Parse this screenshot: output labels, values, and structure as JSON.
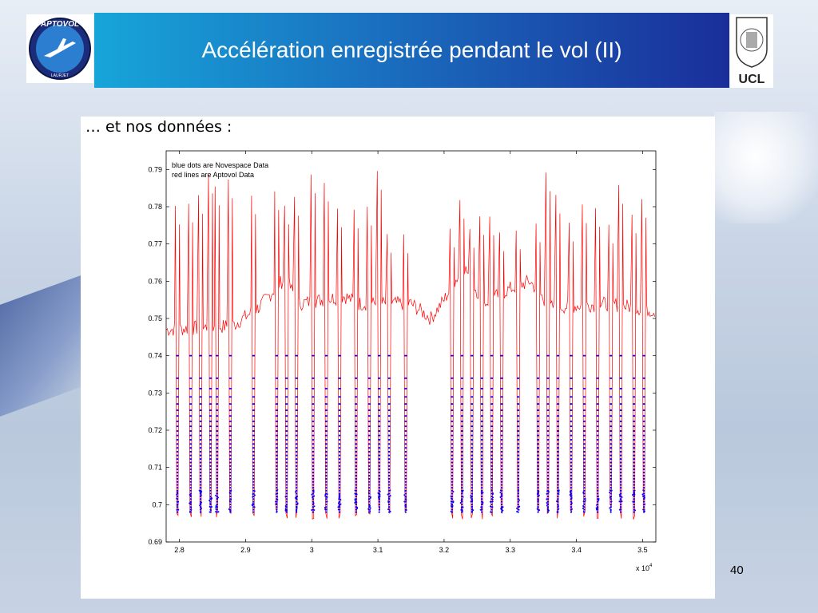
{
  "slide": {
    "title": "Accélération enregistrée pendant le vol (II)",
    "subtitle": "… et nos données :",
    "page_number": "40"
  },
  "logos": {
    "left_text": "APTOVOL",
    "left_subtext": "LAURJET",
    "right_text": "UCL"
  },
  "colors": {
    "header_start": "#17a5d9",
    "header_end": "#1a2e9a",
    "novespace": "#0000ff",
    "aptovol": "#ff0000"
  },
  "chart_data": {
    "type": "line",
    "legend": [
      "blue dots are Novespace Data",
      "red lines are Aptovol Data"
    ],
    "legend_position": "top-left",
    "x_multiplier_label": "x 10",
    "x_multiplier_exp": "4",
    "xlim": [
      2.78,
      3.52
    ],
    "ylim": [
      0.69,
      0.795
    ],
    "xticks": [
      "2.8",
      "2.9",
      "3",
      "3.1",
      "3.2",
      "3.3",
      "3.4",
      "3.5"
    ],
    "yticks": [
      "0.69",
      "0.7",
      "0.71",
      "0.72",
      "0.73",
      "0.74",
      "0.75",
      "0.76",
      "0.77",
      "0.78",
      "0.79"
    ],
    "grid": false,
    "parabolas_x": [
      2.797,
      2.817,
      2.832,
      2.847,
      2.857,
      2.877,
      2.912,
      2.947,
      2.962,
      2.977,
      3.002,
      3.022,
      3.042,
      3.067,
      3.087,
      3.102,
      3.117,
      3.142,
      3.212,
      3.227,
      3.242,
      3.257,
      3.272,
      3.287,
      3.312,
      3.342,
      3.357,
      3.372,
      3.392,
      3.412,
      3.432,
      3.452,
      3.467,
      3.487,
      3.502
    ],
    "series": [
      {
        "name": "Novespace Data",
        "style": "dots",
        "color": "#0000ff",
        "parabola_min": 0.698,
        "parabola_max": 0.74
      },
      {
        "name": "Aptovol Data",
        "style": "line",
        "color": "#ff0000",
        "baseline": [
          [
            2.78,
            0.747
          ],
          [
            2.88,
            0.748
          ],
          [
            2.92,
            0.753
          ],
          [
            2.96,
            0.761
          ],
          [
            2.98,
            0.754
          ],
          [
            3.05,
            0.756
          ],
          [
            3.07,
            0.754
          ],
          [
            3.15,
            0.754
          ],
          [
            3.18,
            0.75
          ],
          [
            3.2,
            0.755
          ],
          [
            3.23,
            0.764
          ],
          [
            3.26,
            0.754
          ],
          [
            3.3,
            0.758
          ],
          [
            3.33,
            0.76
          ],
          [
            3.36,
            0.753
          ],
          [
            3.45,
            0.754
          ],
          [
            3.52,
            0.752
          ]
        ],
        "peak_max": 0.792,
        "trough_min": 0.696
      }
    ]
  }
}
